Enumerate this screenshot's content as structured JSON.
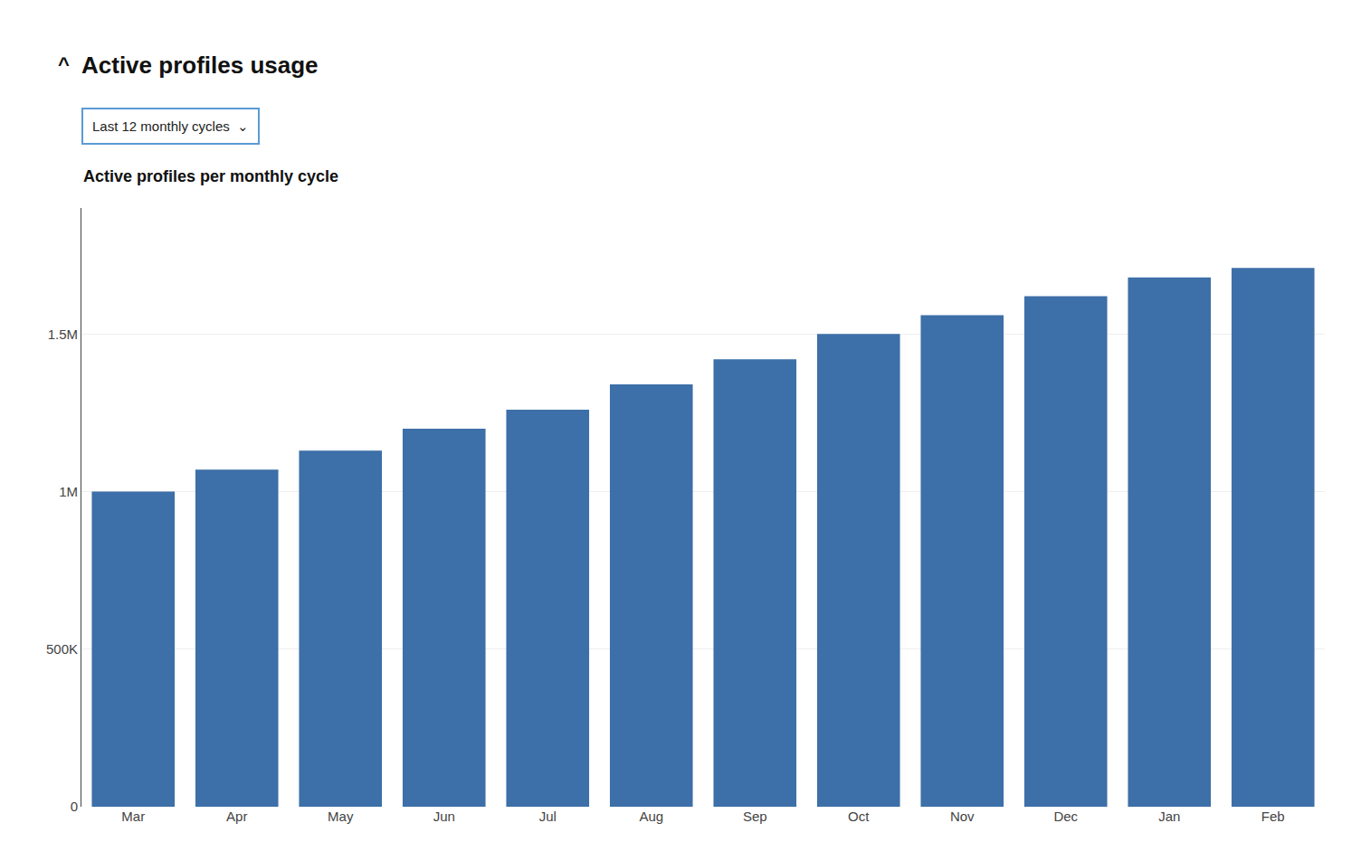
{
  "chart_data": {
    "type": "bar",
    "title": "Active profiles usage",
    "subtitle": "Active profiles per monthly cycle",
    "annotations": [
      "^",
      "Last 12 monthly cycles  ⌄"
    ],
    "categories": [
      "Mar",
      "Apr",
      "May",
      "Jun",
      "Jul",
      "Aug",
      "Sep",
      "Oct",
      "Nov",
      "Dec",
      "Jan",
      "Feb"
    ],
    "values": [
      1000000,
      1070000,
      1130000,
      1200000,
      1260000,
      1340000,
      1420000,
      1500000,
      1560000,
      1620000,
      1680000,
      1710000
    ],
    "color": "#3D6FA8",
    "ylim": [
      0,
      1900000
    ],
    "yticks": [
      0,
      {
        "value": 500000,
        "label": "500K"
      },
      {
        "value": 1000000,
        "label": "1M"
      },
      {
        "value": 1500000,
        "label": "1.5M"
      }
    ],
    "grid": true
  }
}
